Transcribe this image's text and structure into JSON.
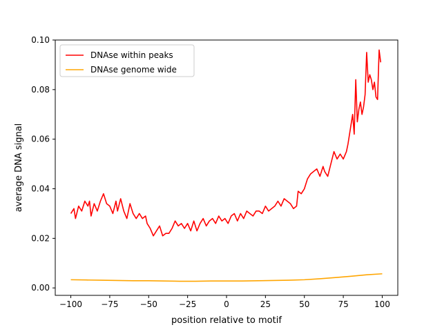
{
  "chart_data": {
    "type": "line",
    "title": "",
    "xlabel": "position relative to motif",
    "ylabel": "average DNA signal",
    "xlim": [
      -110,
      110
    ],
    "ylim": [
      -0.003,
      0.1
    ],
    "xticks": [
      -100,
      -75,
      -50,
      -25,
      0,
      25,
      50,
      75,
      100
    ],
    "xtick_labels": [
      "−100",
      "−75",
      "−50",
      "−25",
      "0",
      "25",
      "50",
      "75",
      "100"
    ],
    "yticks": [
      0.0,
      0.02,
      0.04,
      0.06,
      0.08,
      0.1
    ],
    "ytick_labels": [
      "0.00",
      "0.02",
      "0.04",
      "0.06",
      "0.08",
      "0.10"
    ],
    "grid": false,
    "legend": "upper-left",
    "series": [
      {
        "name": "DNAse within peaks",
        "color": "#ff0000",
        "points": [
          [
            -100,
            0.03
          ],
          [
            -98,
            0.032
          ],
          [
            -97,
            0.028
          ],
          [
            -95,
            0.033
          ],
          [
            -93,
            0.031
          ],
          [
            -91,
            0.035
          ],
          [
            -89,
            0.033
          ],
          [
            -88,
            0.035
          ],
          [
            -87,
            0.029
          ],
          [
            -85,
            0.034
          ],
          [
            -83,
            0.031
          ],
          [
            -81,
            0.035
          ],
          [
            -79,
            0.038
          ],
          [
            -77,
            0.034
          ],
          [
            -75,
            0.033
          ],
          [
            -73,
            0.03
          ],
          [
            -71,
            0.035
          ],
          [
            -70,
            0.031
          ],
          [
            -68,
            0.036
          ],
          [
            -66,
            0.031
          ],
          [
            -64,
            0.028
          ],
          [
            -62,
            0.034
          ],
          [
            -60,
            0.03
          ],
          [
            -58,
            0.028
          ],
          [
            -56,
            0.03
          ],
          [
            -54,
            0.028
          ],
          [
            -52,
            0.029
          ],
          [
            -51,
            0.026
          ],
          [
            -49,
            0.024
          ],
          [
            -47,
            0.021
          ],
          [
            -45,
            0.023
          ],
          [
            -43,
            0.025
          ],
          [
            -41,
            0.021
          ],
          [
            -39,
            0.022
          ],
          [
            -37,
            0.022
          ],
          [
            -35,
            0.024
          ],
          [
            -33,
            0.027
          ],
          [
            -31,
            0.025
          ],
          [
            -29,
            0.026
          ],
          [
            -27,
            0.024
          ],
          [
            -25,
            0.026
          ],
          [
            -23,
            0.023
          ],
          [
            -21,
            0.027
          ],
          [
            -19,
            0.023
          ],
          [
            -17,
            0.026
          ],
          [
            -15,
            0.028
          ],
          [
            -13,
            0.025
          ],
          [
            -11,
            0.027
          ],
          [
            -9,
            0.028
          ],
          [
            -7,
            0.026
          ],
          [
            -5,
            0.029
          ],
          [
            -3,
            0.027
          ],
          [
            -1,
            0.028
          ],
          [
            1,
            0.026
          ],
          [
            3,
            0.029
          ],
          [
            5,
            0.03
          ],
          [
            7,
            0.027
          ],
          [
            9,
            0.03
          ],
          [
            11,
            0.028
          ],
          [
            13,
            0.031
          ],
          [
            15,
            0.03
          ],
          [
            17,
            0.029
          ],
          [
            19,
            0.031
          ],
          [
            21,
            0.031
          ],
          [
            23,
            0.03
          ],
          [
            25,
            0.033
          ],
          [
            27,
            0.031
          ],
          [
            29,
            0.032
          ],
          [
            31,
            0.033
          ],
          [
            33,
            0.035
          ],
          [
            35,
            0.033
          ],
          [
            37,
            0.036
          ],
          [
            39,
            0.035
          ],
          [
            41,
            0.034
          ],
          [
            43,
            0.032
          ],
          [
            45,
            0.033
          ],
          [
            46,
            0.039
          ],
          [
            48,
            0.038
          ],
          [
            50,
            0.04
          ],
          [
            52,
            0.044
          ],
          [
            54,
            0.046
          ],
          [
            56,
            0.047
          ],
          [
            58,
            0.048
          ],
          [
            60,
            0.045
          ],
          [
            62,
            0.049
          ],
          [
            63,
            0.047
          ],
          [
            65,
            0.045
          ],
          [
            67,
            0.05
          ],
          [
            69,
            0.055
          ],
          [
            71,
            0.052
          ],
          [
            73,
            0.054
          ],
          [
            75,
            0.052
          ],
          [
            77,
            0.055
          ],
          [
            78,
            0.058
          ],
          [
            80,
            0.066
          ],
          [
            81,
            0.07
          ],
          [
            82,
            0.062
          ],
          [
            83,
            0.084
          ],
          [
            84,
            0.067
          ],
          [
            85,
            0.072
          ],
          [
            86,
            0.075
          ],
          [
            87,
            0.07
          ],
          [
            88,
            0.073
          ],
          [
            89,
            0.078
          ],
          [
            90,
            0.095
          ],
          [
            91,
            0.083
          ],
          [
            92,
            0.086
          ],
          [
            93,
            0.084
          ],
          [
            94,
            0.08
          ],
          [
            95,
            0.083
          ],
          [
            96,
            0.077
          ],
          [
            97,
            0.076
          ],
          [
            98,
            0.096
          ],
          [
            99,
            0.091
          ]
        ]
      },
      {
        "name": "DNAse genome wide",
        "color": "#ffa500",
        "points": [
          [
            -100,
            0.0033
          ],
          [
            -90,
            0.0032
          ],
          [
            -80,
            0.0031
          ],
          [
            -70,
            0.003
          ],
          [
            -60,
            0.0029
          ],
          [
            -50,
            0.0029
          ],
          [
            -40,
            0.0028
          ],
          [
            -30,
            0.0027
          ],
          [
            -20,
            0.0027
          ],
          [
            -10,
            0.0028
          ],
          [
            0,
            0.0028
          ],
          [
            10,
            0.0028
          ],
          [
            20,
            0.0029
          ],
          [
            30,
            0.003
          ],
          [
            40,
            0.0031
          ],
          [
            50,
            0.0033
          ],
          [
            60,
            0.0037
          ],
          [
            70,
            0.0042
          ],
          [
            80,
            0.0047
          ],
          [
            90,
            0.0053
          ],
          [
            100,
            0.0057
          ]
        ]
      }
    ]
  }
}
